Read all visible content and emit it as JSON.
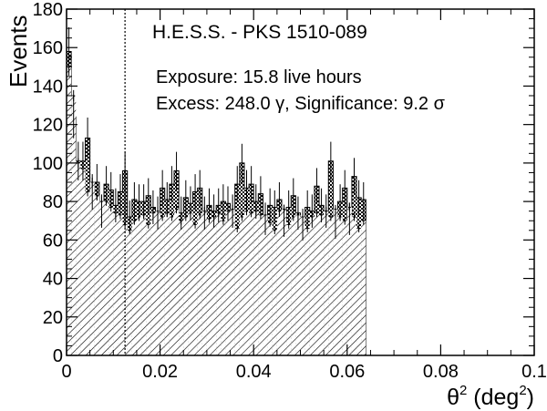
{
  "chart_data": {
    "type": "bar",
    "title": "H.E.S.S. - PKS 1510-089",
    "annotations": {
      "exposure": "Exposure: 15.8 live hours",
      "excess": "Excess: 248.0 γ, Significance: 9.2 σ"
    },
    "ylabel": "Events",
    "xlabel_base": "θ",
    "xlabel_sup": "2",
    "xlabel_unit_open": " (deg",
    "xlabel_unit_sup": "2",
    "xlabel_unit_close": ")",
    "xlim": [
      0,
      0.1
    ],
    "ylim": [
      0,
      180
    ],
    "x_ticks": [
      0,
      0.02,
      0.04,
      0.06,
      0.08,
      0.1
    ],
    "x_tick_labels": [
      "0",
      "0.02",
      "0.04",
      "0.06",
      "0.08",
      "0.1"
    ],
    "y_ticks": [
      0,
      20,
      40,
      60,
      80,
      100,
      120,
      140,
      160,
      180
    ],
    "y_tick_labels": [
      "0",
      "20",
      "40",
      "60",
      "80",
      "100",
      "120",
      "140",
      "160",
      "180"
    ],
    "cut_line_x": 0.0125,
    "bin_width": 0.001,
    "on_counts": [
      158,
      124,
      101,
      101,
      113,
      85,
      90,
      75,
      89,
      86,
      78,
      85,
      96,
      72,
      81,
      80,
      80,
      83,
      77,
      74,
      87,
      81,
      89,
      96,
      74,
      82,
      79,
      85,
      87,
      74,
      78,
      75,
      78,
      80,
      79,
      75,
      89,
      100,
      87,
      89,
      80,
      84,
      71,
      78,
      77,
      81,
      70,
      77,
      83,
      74,
      68,
      77,
      75,
      88,
      78,
      75,
      101,
      69,
      80,
      87,
      71,
      93,
      82,
      81
    ],
    "off_counts": [
      150,
      135,
      100,
      97,
      85,
      90,
      83,
      80,
      80,
      77,
      74,
      73,
      68,
      65,
      70,
      72,
      73,
      68,
      74,
      75,
      72,
      74,
      72,
      76,
      70,
      72,
      74,
      68,
      73,
      75,
      71,
      72,
      74,
      70,
      75,
      76,
      66,
      72,
      75,
      74,
      75,
      73,
      73,
      69,
      65,
      75,
      76,
      68,
      72,
      73,
      72,
      66,
      72,
      74,
      73,
      75,
      72,
      76,
      72,
      70,
      77,
      72,
      66,
      70
    ]
  }
}
